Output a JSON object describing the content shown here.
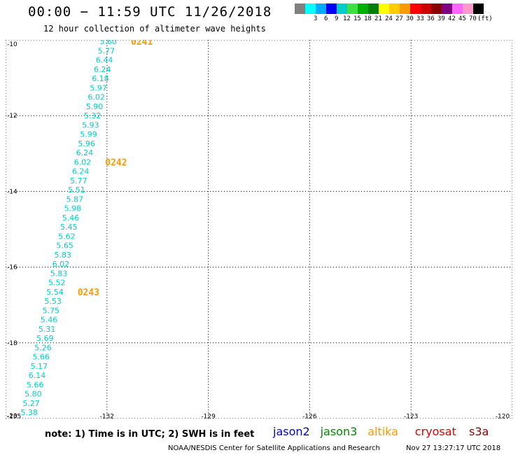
{
  "header": {
    "title": "00:00 − 11:59 UTC 11/26/2018",
    "subtitle": "12 hour collection of altimeter wave heights"
  },
  "legend": {
    "colors": [
      "#808080",
      "#00ffff",
      "#00aaff",
      "#0000ff",
      "#00cccc",
      "#40e040",
      "#00b000",
      "#008000",
      "#ffff00",
      "#ffcc00",
      "#ff9900",
      "#ff0000",
      "#cc0000",
      "#8b0000",
      "#800080",
      "#ff66ff",
      "#ff99cc",
      "#000000"
    ],
    "labels": [
      "3",
      "6",
      "9",
      "12",
      "15",
      "18",
      "21",
      "24",
      "27",
      "30",
      "33",
      "36",
      "39",
      "42",
      "45",
      "70",
      "(ft)"
    ]
  },
  "map": {
    "lat_ticks": [
      "-10",
      "-12",
      "-14",
      "-16",
      "-18",
      "-20"
    ],
    "lon_ticks": [
      "-135",
      "-132",
      "-129",
      "-126",
      "-123",
      "-120"
    ],
    "lat_range": [
      -10,
      -20
    ],
    "lon_range": [
      -135,
      -120
    ],
    "grid_color": "#000000",
    "track": {
      "color": "#00cccc",
      "pass_color": "#ff9900",
      "labels": [
        "5.60",
        "5.77",
        "6.44",
        "6.24",
        "6.18",
        "5.97",
        "6.02",
        "5.90",
        "5.32",
        "5.93",
        "5.99",
        "5.96",
        "6.24",
        "6.02",
        "6.24",
        "5.77",
        "5.51",
        "5.87",
        "5.98",
        "5.46",
        "5.45",
        "5.62",
        "5.65",
        "5.83",
        "6.02",
        "5.83",
        "5.52",
        "5.54",
        "5.53",
        "5.75",
        "5.46",
        "5.31",
        "5.69",
        "5.26",
        "5.66",
        "5.17",
        "6.14",
        "5.66",
        "5.80",
        "5.27",
        "5.38"
      ],
      "passes": [
        {
          "label": "0241",
          "index": 0
        },
        {
          "label": "0242",
          "index": 13
        },
        {
          "label": "0243",
          "index": 27
        }
      ]
    }
  },
  "footer": {
    "note": "note:  1) Time is in UTC;  2) SWH is in feet",
    "missions": [
      {
        "name": "jason2",
        "color": "#0000cc"
      },
      {
        "name": "jason3",
        "color": "#008800"
      },
      {
        "name": "altika",
        "color": "#ff9900"
      },
      {
        "name": "cryosat",
        "color": "#dd0000"
      },
      {
        "name": "s3a",
        "color": "#8b0000"
      }
    ],
    "credit": "NOAA/NESDIS Center for Satellite Applications and Research",
    "timestamp": "Nov 27 13:27:17 UTC 2018"
  }
}
